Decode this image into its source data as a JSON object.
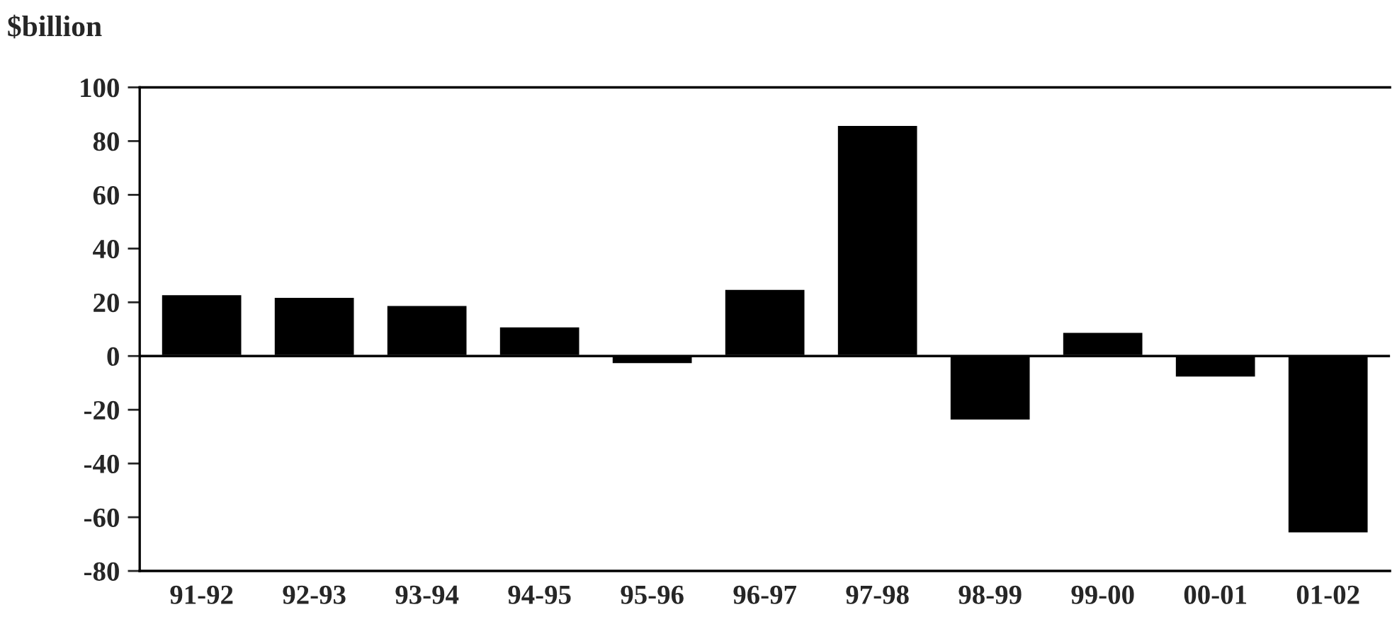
{
  "chart_data": {
    "type": "bar",
    "ylabel": "$billion",
    "categories": [
      "91-92",
      "92-93",
      "93-94",
      "94-95",
      "95-96",
      "96-97",
      "97-98",
      "98-99",
      "99-00",
      "00-01",
      "01-02"
    ],
    "values": [
      23,
      22,
      19,
      11,
      -3,
      25,
      86,
      -24,
      9,
      -8,
      -66
    ],
    "color": "#000000",
    "ylim": [
      -80,
      100
    ],
    "yticks": [
      -80,
      -60,
      -40,
      -20,
      0,
      20,
      40,
      60,
      80,
      100
    ],
    "ref_lines": [
      {
        "axis": "y",
        "value": 0,
        "color": "#000000"
      }
    ],
    "grid": false,
    "legend": false
  }
}
